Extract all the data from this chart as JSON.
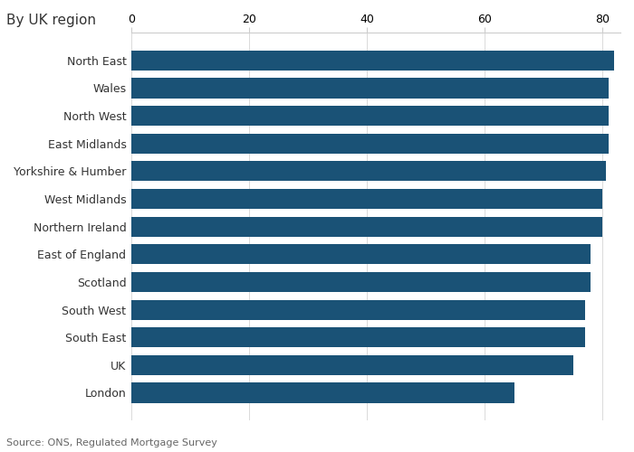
{
  "title": "By UK region",
  "legend_label": "%",
  "categories": [
    "London",
    "UK",
    "South East",
    "South West",
    "Scotland",
    "East of England",
    "Northern Ireland",
    "West Midlands",
    "Yorkshire & Humber",
    "East Midlands",
    "North West",
    "Wales",
    "North East"
  ],
  "values": [
    65,
    75,
    77,
    77,
    78,
    78,
    80,
    80,
    80.5,
    81,
    81,
    81,
    82
  ],
  "bar_color": "#1a5276",
  "background_color": "#ffffff",
  "source_text": "Source: ONS, Regulated Mortgage Survey",
  "xlim": [
    0,
    83
  ],
  "xticks": [
    0,
    20,
    40,
    60,
    80
  ],
  "title_fontsize": 11,
  "tick_fontsize": 9,
  "legend_fontsize": 9,
  "source_fontsize": 8
}
